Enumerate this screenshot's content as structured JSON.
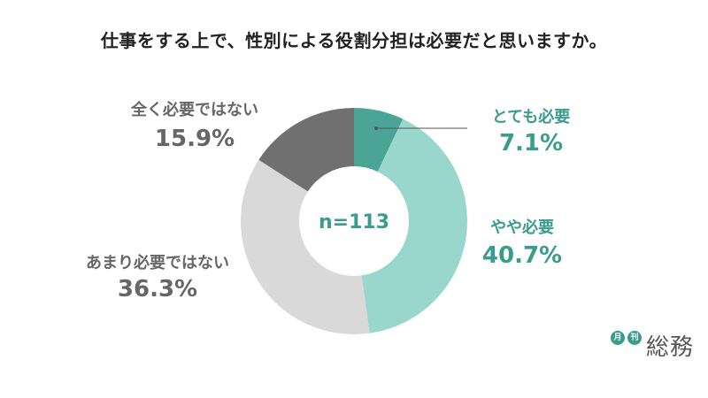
{
  "title": "仕事をする上で、性別による役割分担は必要だと思いますか。",
  "chart_data": {
    "type": "pie",
    "variant": "donut",
    "center_label": "n=113",
    "slices": [
      {
        "label": "とても必要",
        "value": 7.1,
        "value_label": "7.1%",
        "color": "#4aa596",
        "label_color": "#3a9c8c"
      },
      {
        "label": "やや必要",
        "value": 40.7,
        "value_label": "40.7%",
        "color": "#99d7cd",
        "label_color": "#3a9c8c"
      },
      {
        "label": "あまり必要ではない",
        "value": 36.3,
        "value_label": "36.3%",
        "color": "#d9d9d9",
        "label_color": "#666666"
      },
      {
        "label": "全く必要ではない",
        "value": 15.9,
        "value_label": "15.9%",
        "color": "#707070",
        "label_color": "#666666"
      }
    ],
    "start_angle": "12 o'clock",
    "direction": "clockwise"
  },
  "logo": {
    "badge1": "月",
    "badge2": "刊",
    "text": "総務"
  }
}
